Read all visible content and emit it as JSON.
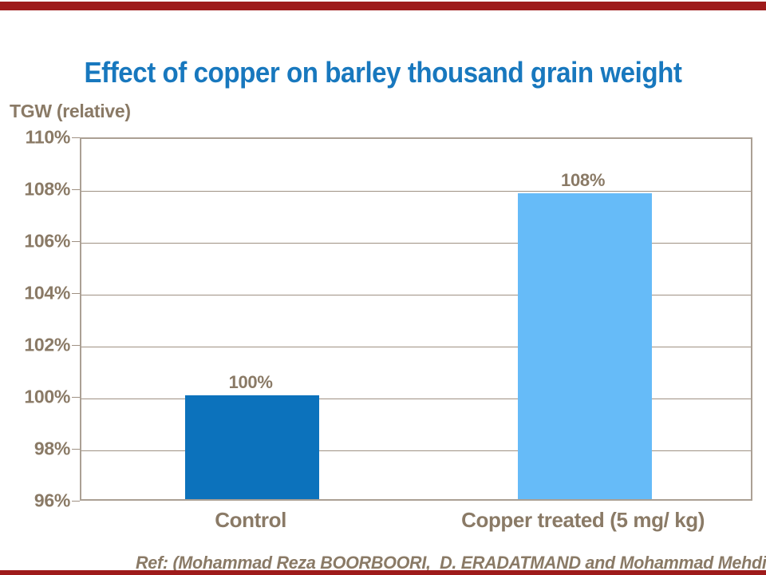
{
  "page": {
    "title": "Effect of copper on barley thousand grain weight",
    "y_axis_title": "TGW (relative)",
    "ref_text": "Ref: (Mohammad Reza BOORBOORI,  D. ERADATMAND and Mohammad Mehdi"
  },
  "colors": {
    "accent_red": "#9E1B1B",
    "title_blue": "#1878BE",
    "bar_control": "#0C72BC",
    "bar_treated": "#66BBF8",
    "text_taupe": "#8A7A66",
    "grid_line": "#9F9183",
    "plot_border": "#ABA094"
  },
  "chart_data": {
    "type": "bar",
    "title": "Effect of copper on barley thousand grain weight",
    "xlabel": "",
    "ylabel": "TGW (relative)",
    "ylim": [
      96,
      110
    ],
    "ytick_step": 2,
    "yticks": [
      "110%",
      "108%",
      "106%",
      "104%",
      "102%",
      "100%",
      "98%",
      "96%"
    ],
    "grid": true,
    "legend": false,
    "categories": [
      "Control",
      "Copper treated (5 mg/ kg)"
    ],
    "values": [
      100,
      107.8
    ],
    "value_labels": [
      "100%",
      "108%"
    ],
    "series_color_keys": [
      "bar_control",
      "bar_treated"
    ],
    "annotation": "Ref: (Mohammad Reza BOORBOORI,  D. ERADATMAND and Mohammad Mehdi"
  }
}
